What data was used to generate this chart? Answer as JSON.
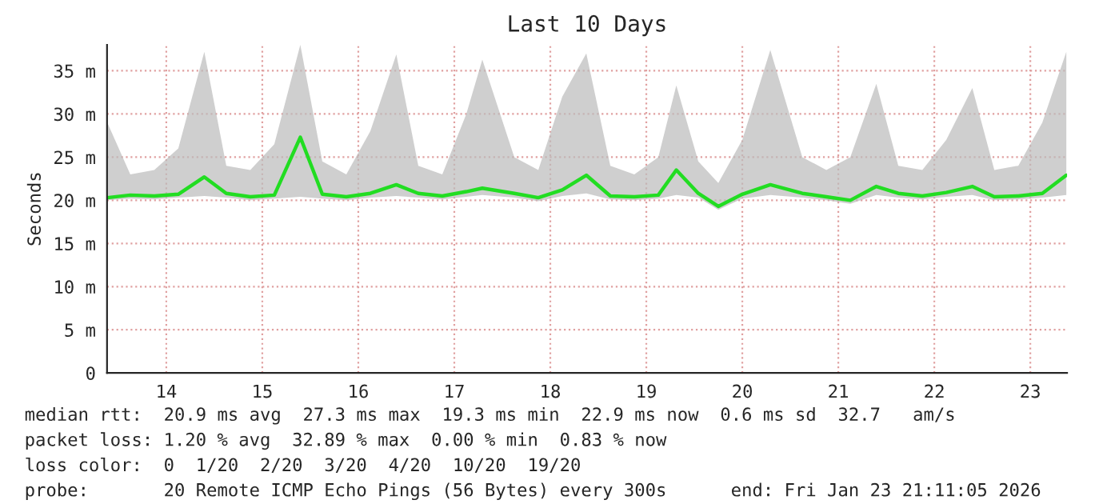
{
  "chart_data": {
    "type": "line",
    "title": "Last 10 Days",
    "ylabel": "Seconds",
    "x": [
      "2026-01-13T21:15",
      "2026-01-14T03:00",
      "2026-01-14T09:00",
      "2026-01-14T15:00",
      "2026-01-14T21:30",
      "2026-01-15T03:00",
      "2026-01-15T09:00",
      "2026-01-15T15:00",
      "2026-01-15T21:30",
      "2026-01-16T03:00",
      "2026-01-16T09:00",
      "2026-01-16T15:00",
      "2026-01-16T21:30",
      "2026-01-17T03:00",
      "2026-01-17T09:00",
      "2026-01-17T15:00",
      "2026-01-17T19:00",
      "2026-01-18T03:00",
      "2026-01-18T09:00",
      "2026-01-18T15:00",
      "2026-01-18T21:00",
      "2026-01-19T03:00",
      "2026-01-19T09:00",
      "2026-01-19T15:00",
      "2026-01-19T19:30",
      "2026-01-20T01:00",
      "2026-01-20T06:00",
      "2026-01-20T12:00",
      "2026-01-20T19:00",
      "2026-01-21T03:00",
      "2026-01-21T09:00",
      "2026-01-21T15:00",
      "2026-01-21T21:30",
      "2026-01-22T03:00",
      "2026-01-22T09:00",
      "2026-01-22T15:00",
      "2026-01-22T21:30",
      "2026-01-23T03:00",
      "2026-01-23T09:00",
      "2026-01-23T15:00",
      "2026-01-23T21:00"
    ],
    "series": [
      {
        "color": "#22dd22",
        "values": [
          20.3,
          20.6,
          20.5,
          20.7,
          22.7,
          20.8,
          20.4,
          20.6,
          27.3,
          20.7,
          20.4,
          20.8,
          21.8,
          20.8,
          20.5,
          21.0,
          21.4,
          20.8,
          20.3,
          21.2,
          22.9,
          20.5,
          20.4,
          20.6,
          23.5,
          20.8,
          19.3,
          20.7,
          21.8,
          20.8,
          20.4,
          20.0,
          21.6,
          20.8,
          20.5,
          20.9,
          21.6,
          20.4,
          20.5,
          20.8,
          22.9
        ],
        "lower": [
          20.0,
          20.2,
          20.1,
          20.3,
          20.5,
          20.3,
          20.0,
          20.2,
          20.4,
          20.2,
          20.0,
          20.3,
          20.5,
          20.3,
          20.1,
          20.4,
          20.6,
          20.3,
          19.9,
          20.5,
          20.8,
          20.1,
          20.0,
          20.2,
          20.6,
          20.3,
          18.9,
          20.2,
          20.6,
          20.3,
          20.0,
          19.6,
          20.6,
          20.3,
          20.1,
          20.4,
          20.6,
          20.0,
          20.1,
          20.3,
          20.6
        ],
        "upper": [
          29.0,
          23.0,
          23.5,
          26.0,
          37.2,
          24.0,
          23.5,
          26.5,
          38.0,
          24.5,
          23.0,
          28.0,
          36.9,
          24.0,
          23.0,
          30.0,
          36.3,
          25.0,
          23.5,
          32.0,
          37.0,
          24.0,
          23.0,
          25.0,
          33.3,
          24.5,
          22.0,
          27.0,
          37.4,
          25.0,
          23.5,
          25.0,
          33.5,
          24.0,
          23.5,
          27.0,
          33.0,
          23.5,
          24.0,
          29.0,
          37.2
        ]
      }
    ],
    "xlim": [
      "2026-01-13T21:11",
      "2026-01-23T21:11"
    ],
    "xticks": [
      {
        "value": "2026-01-14T12:00",
        "label": "14"
      },
      {
        "value": "2026-01-15T12:00",
        "label": "15"
      },
      {
        "value": "2026-01-16T12:00",
        "label": "16"
      },
      {
        "value": "2026-01-17T12:00",
        "label": "17"
      },
      {
        "value": "2026-01-18T12:00",
        "label": "18"
      },
      {
        "value": "2026-01-19T12:00",
        "label": "19"
      },
      {
        "value": "2026-01-20T12:00",
        "label": "20"
      },
      {
        "value": "2026-01-21T12:00",
        "label": "21"
      },
      {
        "value": "2026-01-22T12:00",
        "label": "22"
      },
      {
        "value": "2026-01-23T12:00",
        "label": "23"
      }
    ],
    "ylim": [
      0,
      38
    ],
    "yticks": [
      0,
      {
        "value": 5,
        "label": "5 m"
      },
      {
        "value": 10,
        "label": "10 m"
      },
      {
        "value": 15,
        "label": "15 m"
      },
      {
        "value": 20,
        "label": "20 m"
      },
      {
        "value": 25,
        "label": "25 m"
      },
      {
        "value": 30,
        "label": "30 m"
      },
      {
        "value": 35,
        "label": "35 m"
      }
    ],
    "grid": true,
    "line_style": "solid",
    "annotations": [
      "median rtt:  20.9 ms avg  27.3 ms max  19.3 ms min  22.9 ms now  0.6 ms sd  32.7   am/s",
      "packet loss: 1.20 % avg  32.89 % max  0.00 % min  0.83 % now",
      "loss color:  0  1/20  2/20  3/20  4/20  10/20  19/20",
      "probe:       20 Remote ICMP Echo Pings (56 Bytes) every 300s      end: Fri Jan 23 21:11:05 2026"
    ]
  }
}
